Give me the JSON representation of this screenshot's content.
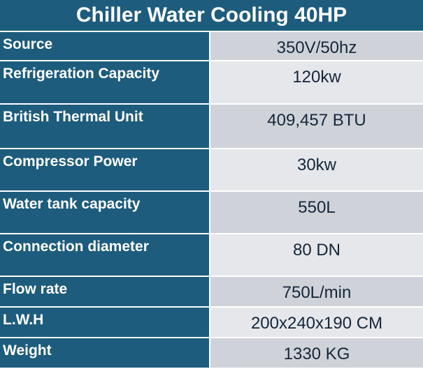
{
  "header": {
    "title": "Chiller Water Cooling 40HP"
  },
  "table": {
    "rows": [
      [
        "Source",
        "350V/50hz"
      ],
      [
        "Refrigeration Capacity",
        "120kw"
      ],
      [
        "British Thermal Unit",
        "409,457 BTU"
      ],
      [
        "Compressor Power",
        "30kw"
      ],
      [
        "Water tank capacity",
        "550L"
      ],
      [
        "Connection diameter",
        "80 DN"
      ],
      [
        "Flow rate",
        "750L/min"
      ],
      [
        "L.W.H",
        "200x240x190 CM"
      ],
      [
        "Weight",
        "1330 KG"
      ]
    ]
  }
}
